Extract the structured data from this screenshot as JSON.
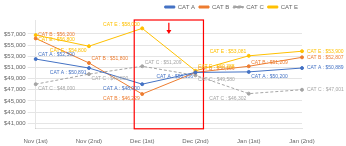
{
  "chart_data": {
    "type": "line",
    "categories": [
      "Nov (1st)",
      "Nov (2nd)",
      "Dec (1st)",
      "Dec (2nd)",
      "Jan (1st)",
      "Jan (2nd)"
    ],
    "series": [
      {
        "name": "CAT A",
        "color": "#4472C4",
        "line_style": "solid",
        "marker": "circle",
        "values": [
          52500,
          50891,
          48000,
          50106,
          50200,
          50889
        ],
        "value_labels": [
          "CAT A : $52,500",
          "CAT A : $50,891",
          "CAT A : $48,000",
          "CAT A : $50,106",
          "CAT A : $50,200",
          "CAT A : $50,889"
        ]
      },
      {
        "name": "CAT B",
        "color": "#ED7D31",
        "line_style": "solid",
        "marker": "circle",
        "values": [
          56200,
          51800,
          46229,
          50106,
          51209,
          52807
        ],
        "value_labels": [
          "CAT B : $56,200",
          "CAT B : $51,800",
          "CAT B : $46,229",
          "CAT B : $50,106",
          "CAT B : $51,209",
          "CAT B : $52,807"
        ]
      },
      {
        "name": "CAT C",
        "color": "#A5A5A5",
        "line_style": "dashed",
        "marker": "circle",
        "values": [
          48000,
          49800,
          51209,
          49580,
          46302,
          47001
        ],
        "value_labels": [
          "CAT C : $48,000",
          "CAT C : $49,800",
          "CAT C : $51,209",
          "CAT C : $49,580",
          "CAT C : $46,302",
          "CAT C : $47,001"
        ]
      },
      {
        "name": "CAT E",
        "color": "#FFC000",
        "line_style": "solid",
        "marker": "circle",
        "values": [
          56800,
          54800,
          58000,
          50388,
          53081,
          53900
        ],
        "value_labels": [
          "CAT E : $56,800",
          "CAT E : $54,800",
          "CAT E : $58,000",
          "CAT E : $50,388",
          "CAT E : $53,081",
          "CAT E : $53,900"
        ]
      }
    ],
    "ylim": [
      40000,
      59500
    ],
    "yticks": [
      {
        "value": 41000,
        "label": "$41,000"
      },
      {
        "value": 43000,
        "label": "$43,000"
      },
      {
        "value": 45000,
        "label": "$45,000"
      },
      {
        "value": 47000,
        "label": "$47,000"
      },
      {
        "value": 49000,
        "label": "$49,000"
      },
      {
        "value": 51000,
        "label": "$51,000"
      },
      {
        "value": 53000,
        "label": "$53,000"
      },
      {
        "value": 55000,
        "label": "$55,000"
      },
      {
        "value": 57000,
        "label": "$57,000"
      }
    ],
    "grid": true,
    "legend": "upper right",
    "data_labels": true,
    "annotations": [
      {
        "shape": "rect",
        "color": "#FF0000",
        "categories": [
          "Dec (1st)",
          "Dec (2nd)"
        ],
        "ylim": [
          40000,
          59500
        ]
      },
      {
        "shape": "arrow",
        "color": "#FF0000",
        "categories": [
          "Dec (1st)",
          "Dec (2nd)"
        ],
        "y": [
          59000,
          57000
        ]
      }
    ]
  }
}
